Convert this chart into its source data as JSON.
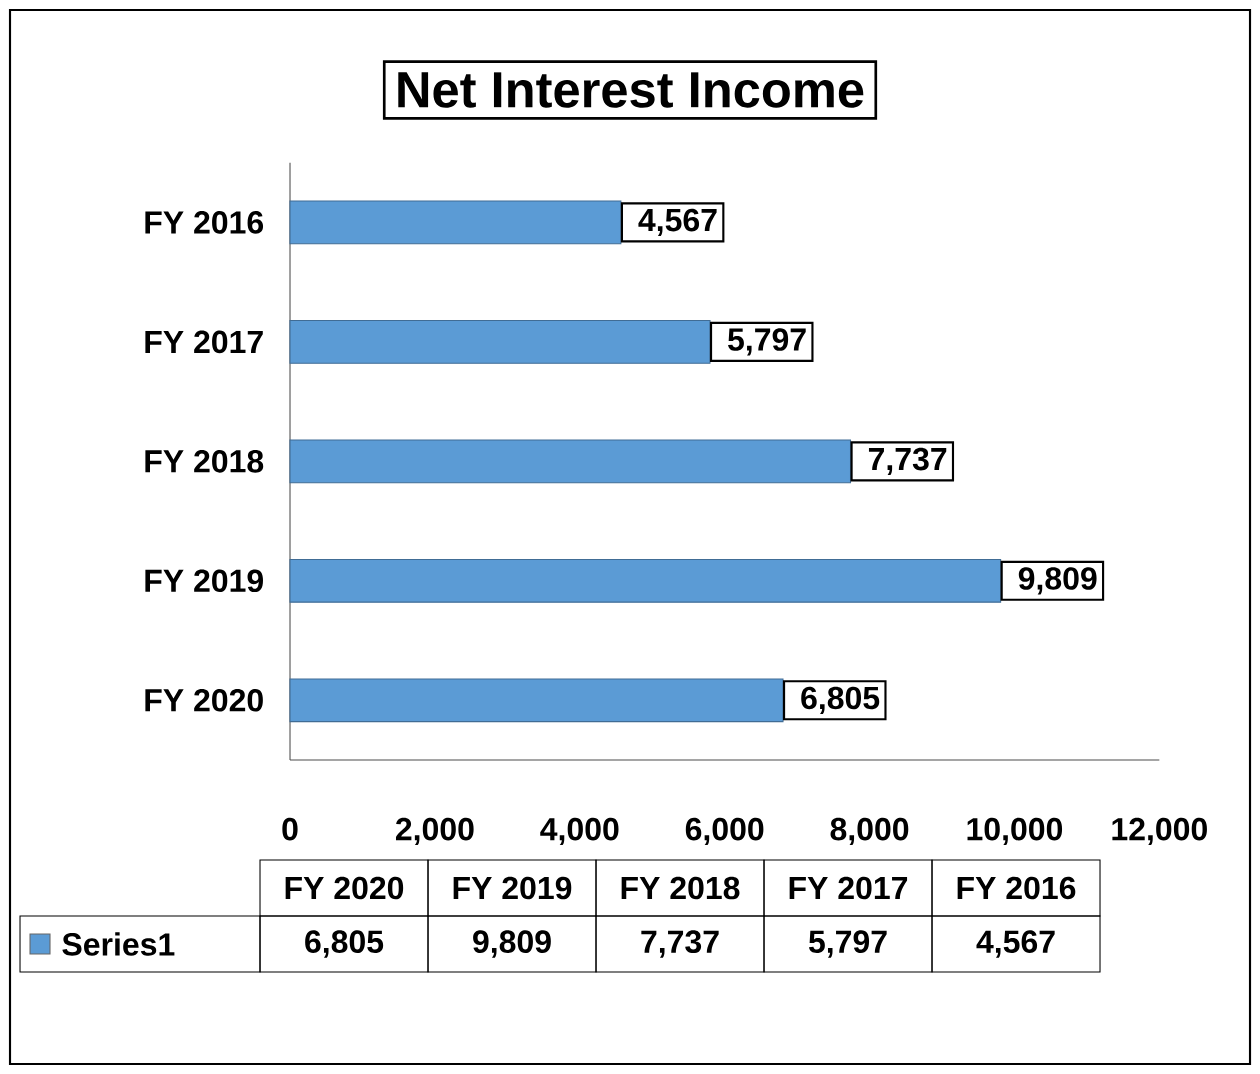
{
  "chart_data": {
    "type": "bar",
    "orientation": "horizontal",
    "title": "Net Interest Income",
    "categories": [
      "FY 2016",
      "FY 2017",
      "FY 2018",
      "FY 2019",
      "FY 2020"
    ],
    "series": [
      {
        "name": "Series1",
        "color": "#5b9bd5",
        "values": [
          4567,
          5797,
          7737,
          9809,
          6805
        ],
        "value_labels": [
          "4,567",
          "5,797",
          "7,737",
          "9,809",
          "6,805"
        ]
      }
    ],
    "xlim": [
      0,
      12000
    ],
    "xticks": [
      0,
      {
        "value": 2000,
        "label": "2,000"
      },
      {
        "value": 4000,
        "label": "4,000"
      },
      {
        "value": 6000,
        "label": "6,000"
      },
      {
        "value": 8000,
        "label": "8,000"
      },
      {
        "value": 10000,
        "label": "10,000"
      },
      {
        "value": 12000,
        "label": "12,000"
      }
    ]
  }
}
